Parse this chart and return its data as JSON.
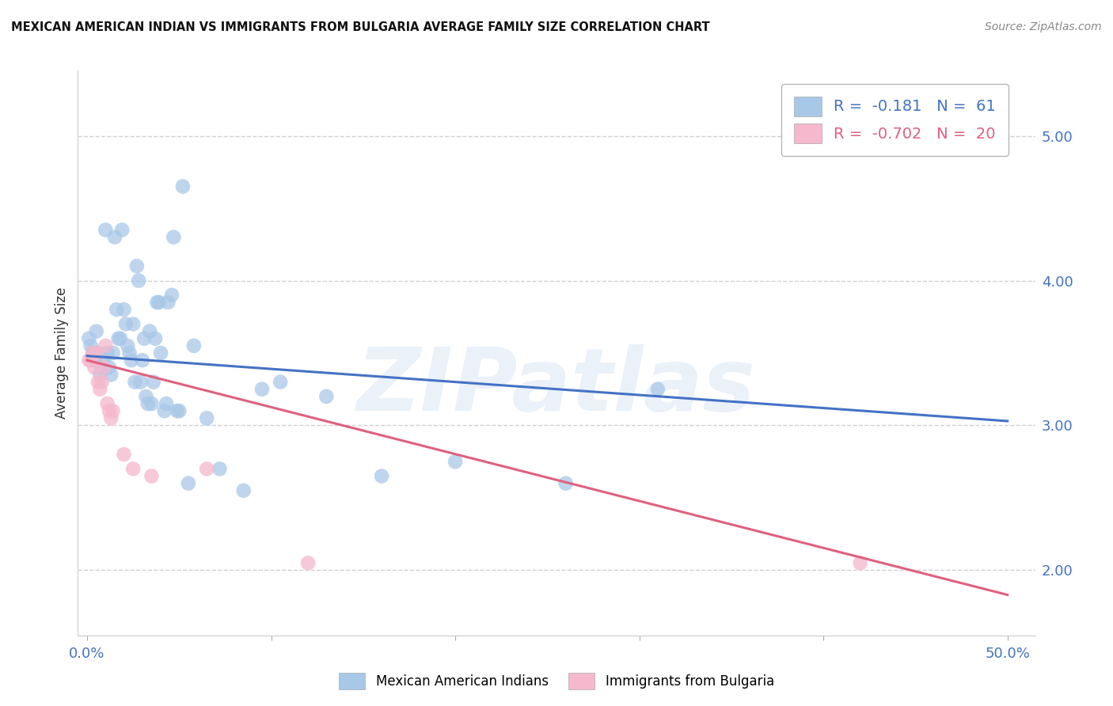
{
  "title": "MEXICAN AMERICAN INDIAN VS IMMIGRANTS FROM BULGARIA AVERAGE FAMILY SIZE CORRELATION CHART",
  "source": "Source: ZipAtlas.com",
  "ylabel": "Average Family Size",
  "right_yticks": [
    2.0,
    3.0,
    4.0,
    5.0
  ],
  "background_color": "#ffffff",
  "watermark": "ZIPatlas",
  "blue_label": "Mexican American Indians",
  "pink_label": "Immigrants from Bulgaria",
  "blue_R": "-0.181",
  "blue_N": "61",
  "pink_R": "-0.702",
  "pink_N": "20",
  "blue_color": "#a8c8e8",
  "pink_color": "#f5b8cc",
  "blue_line_color": "#4472c4",
  "pink_line_color": "#e06080",
  "blue_scatter_x": [
    0.001,
    0.002,
    0.003,
    0.004,
    0.005,
    0.006,
    0.007,
    0.008,
    0.009,
    0.01,
    0.011,
    0.012,
    0.013,
    0.014,
    0.015,
    0.016,
    0.017,
    0.018,
    0.019,
    0.02,
    0.021,
    0.022,
    0.023,
    0.024,
    0.025,
    0.026,
    0.027,
    0.028,
    0.029,
    0.03,
    0.031,
    0.032,
    0.033,
    0.034,
    0.035,
    0.036,
    0.037,
    0.038,
    0.039,
    0.04,
    0.042,
    0.043,
    0.044,
    0.046,
    0.047,
    0.049,
    0.05,
    0.052,
    0.055,
    0.058,
    0.065,
    0.072,
    0.085,
    0.095,
    0.105,
    0.13,
    0.16,
    0.2,
    0.26,
    0.31,
    0.49
  ],
  "blue_scatter_y": [
    3.6,
    3.55,
    3.5,
    3.45,
    3.65,
    3.5,
    3.35,
    3.4,
    3.45,
    4.35,
    3.5,
    3.4,
    3.35,
    3.5,
    4.3,
    3.8,
    3.6,
    3.6,
    4.35,
    3.8,
    3.7,
    3.55,
    3.5,
    3.45,
    3.7,
    3.3,
    4.1,
    4.0,
    3.3,
    3.45,
    3.6,
    3.2,
    3.15,
    3.65,
    3.15,
    3.3,
    3.6,
    3.85,
    3.85,
    3.5,
    3.1,
    3.15,
    3.85,
    3.9,
    4.3,
    3.1,
    3.1,
    4.65,
    2.6,
    3.55,
    3.05,
    2.7,
    2.55,
    3.25,
    3.3,
    3.2,
    2.65,
    2.75,
    2.6,
    3.25,
    5.05
  ],
  "pink_scatter_x": [
    0.001,
    0.002,
    0.003,
    0.004,
    0.005,
    0.006,
    0.007,
    0.008,
    0.009,
    0.01,
    0.011,
    0.012,
    0.013,
    0.014,
    0.02,
    0.025,
    0.035,
    0.065,
    0.12,
    0.42
  ],
  "pink_scatter_y": [
    3.45,
    3.45,
    3.5,
    3.4,
    3.5,
    3.3,
    3.25,
    3.3,
    3.4,
    3.55,
    3.15,
    3.1,
    3.05,
    3.1,
    2.8,
    2.7,
    2.65,
    2.7,
    2.05,
    2.05
  ],
  "blue_trendline_x": [
    0.0,
    0.5
  ],
  "blue_trendline_y": [
    3.48,
    3.03
  ],
  "pink_trendline_x": [
    0.0,
    0.5
  ],
  "pink_trendline_y": [
    3.45,
    1.83
  ],
  "xlim": [
    -0.005,
    0.515
  ],
  "ylim": [
    1.55,
    5.45
  ],
  "xtick_positions": [
    0.0,
    0.1,
    0.2,
    0.3,
    0.4,
    0.5
  ],
  "xtick_labels": [
    "0.0%",
    "",
    "",
    "",
    "",
    "50.0%"
  ],
  "grid_color": "#d0d0d0",
  "grid_style": "--",
  "tick_color": "#4472c4"
}
